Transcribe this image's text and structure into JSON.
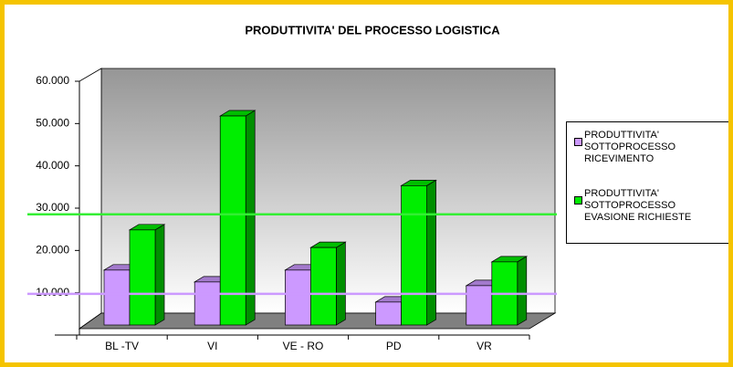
{
  "chart_data": {
    "type": "bar3d",
    "title": "PRODUTTIVITA' DEL PROCESSO LOGISTICA",
    "categories": [
      "BL -TV",
      "VI",
      "VE - RO",
      "PD",
      "VR"
    ],
    "series": [
      {
        "name": "PRODUTTIVITA' SOTTOPROCESSO RICEVIMENTO",
        "color": "#cc99ff",
        "values": [
          13400,
          10500,
          13400,
          5600,
          9600
        ]
      },
      {
        "name": "PRODUTTIVITA' SOTTOPROCESSO EVASIONE RICHIESTE",
        "color": "#00ee00",
        "values": [
          23200,
          51000,
          18900,
          34000,
          15400
        ]
      }
    ],
    "reference_lines": [
      {
        "value": 27000,
        "color": "#33ee33"
      },
      {
        "value": 7600,
        "color": "#cc99ff"
      }
    ],
    "ylim": [
      0,
      60000
    ],
    "yticks": [
      {
        "value": 0,
        "label": "-"
      },
      {
        "value": 10000,
        "label": "10.000"
      },
      {
        "value": 20000,
        "label": "20.000"
      },
      {
        "value": 30000,
        "label": "30.000"
      },
      {
        "value": 40000,
        "label": "40.000"
      },
      {
        "value": 50000,
        "label": "50.000"
      },
      {
        "value": 60000,
        "label": "60.000"
      }
    ],
    "legend": "right"
  }
}
